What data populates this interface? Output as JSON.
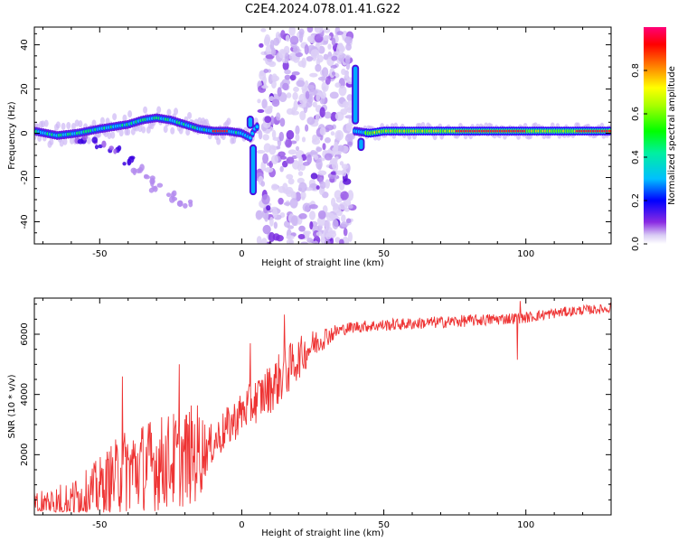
{
  "title": "C2E4.2024.078.01.41.G22",
  "chart_data": [
    {
      "type": "heatmap",
      "xlabel": "Height of straight line (km)",
      "ylabel": "Frequency (Hz)",
      "xlim": [
        -73,
        130
      ],
      "ylim": [
        -50,
        48
      ],
      "xticks": [
        -50,
        0,
        50,
        100
      ],
      "yticks": [
        -40,
        -20,
        0,
        20,
        40
      ],
      "colorbar": {
        "label": "Normalized spectral amplitude",
        "range": [
          0,
          1
        ],
        "ticks": [
          0.0,
          0.2,
          0.4,
          0.6,
          0.8
        ]
      },
      "noise_band": [
        6,
        39
      ],
      "ridge": [
        [
          -73,
          1
        ],
        [
          -65,
          -1
        ],
        [
          -58,
          0
        ],
        [
          -50,
          2
        ],
        [
          -45,
          3
        ],
        [
          -40,
          4
        ],
        [
          -35,
          6
        ],
        [
          -30,
          7
        ],
        [
          -25,
          6
        ],
        [
          -20,
          4
        ],
        [
          -15,
          2
        ],
        [
          -10,
          1
        ],
        [
          -5,
          1
        ],
        [
          0,
          0
        ],
        [
          3,
          -2
        ],
        [
          5,
          3
        ],
        [
          40,
          1
        ],
        [
          45,
          0
        ],
        [
          50,
          1
        ],
        [
          60,
          1
        ],
        [
          80,
          1
        ],
        [
          100,
          1
        ],
        [
          110,
          1
        ],
        [
          130,
          1
        ]
      ],
      "ridge_peak_ranges": [
        [
          -10,
          -5
        ],
        [
          75,
          100
        ],
        [
          118,
          130
        ]
      ],
      "secondary_branch": [
        [
          -56,
          -2
        ],
        [
          -50,
          -5
        ],
        [
          -45,
          -8
        ],
        [
          -40,
          -12
        ],
        [
          -37,
          -16
        ],
        [
          -33,
          -20
        ],
        [
          -30,
          -24
        ],
        [
          -25,
          -28
        ],
        [
          -20,
          -31
        ]
      ],
      "spikes": [
        {
          "x": 4,
          "from": -5,
          "to": -28
        },
        {
          "x": 3,
          "from": 2,
          "to": 8
        },
        {
          "x": 40,
          "from": 4,
          "to": 31
        },
        {
          "x": 42,
          "from": -2,
          "to": -8
        }
      ]
    },
    {
      "type": "line",
      "color": "#ee3333",
      "xlabel": "Height of straight line (km)",
      "ylabel": "SNR (10 * v/v)",
      "xlim": [
        -73,
        130
      ],
      "ylim": [
        0,
        7200
      ],
      "xticks": [
        -50,
        0,
        50,
        100
      ],
      "yticks": [
        2000,
        4000,
        6000
      ],
      "trend": [
        [
          -73,
          350
        ],
        [
          -60,
          450
        ],
        [
          -50,
          900
        ],
        [
          -40,
          1500
        ],
        [
          -30,
          1700
        ],
        [
          -20,
          1900
        ],
        [
          -12,
          2200
        ],
        [
          -5,
          2900
        ],
        [
          0,
          3400
        ],
        [
          5,
          3800
        ],
        [
          10,
          4200
        ],
        [
          15,
          4700
        ],
        [
          20,
          5200
        ],
        [
          25,
          5650
        ],
        [
          30,
          5950
        ],
        [
          35,
          6150
        ],
        [
          40,
          6250
        ],
        [
          50,
          6300
        ],
        [
          60,
          6350
        ],
        [
          70,
          6400
        ],
        [
          80,
          6450
        ],
        [
          90,
          6500
        ],
        [
          100,
          6550
        ],
        [
          110,
          6700
        ],
        [
          120,
          6800
        ],
        [
          130,
          6850
        ]
      ],
      "spread": [
        [
          -73,
          500
        ],
        [
          -55,
          800
        ],
        [
          -40,
          1500
        ],
        [
          -15,
          1700
        ],
        [
          -12,
          700
        ],
        [
          0,
          700
        ],
        [
          15,
          900
        ],
        [
          25,
          500
        ],
        [
          35,
          200
        ],
        [
          90,
          200
        ],
        [
          130,
          150
        ]
      ],
      "spikes": [
        {
          "x": -42,
          "y": 4600
        },
        {
          "x": -22,
          "y": 5000
        },
        {
          "x": 3,
          "y": 5700
        },
        {
          "x": 15,
          "y": 6650
        },
        {
          "x": 97,
          "y": 5150
        },
        {
          "x": 98,
          "y": 7100
        },
        {
          "x": 130,
          "y": 7050
        }
      ]
    }
  ]
}
